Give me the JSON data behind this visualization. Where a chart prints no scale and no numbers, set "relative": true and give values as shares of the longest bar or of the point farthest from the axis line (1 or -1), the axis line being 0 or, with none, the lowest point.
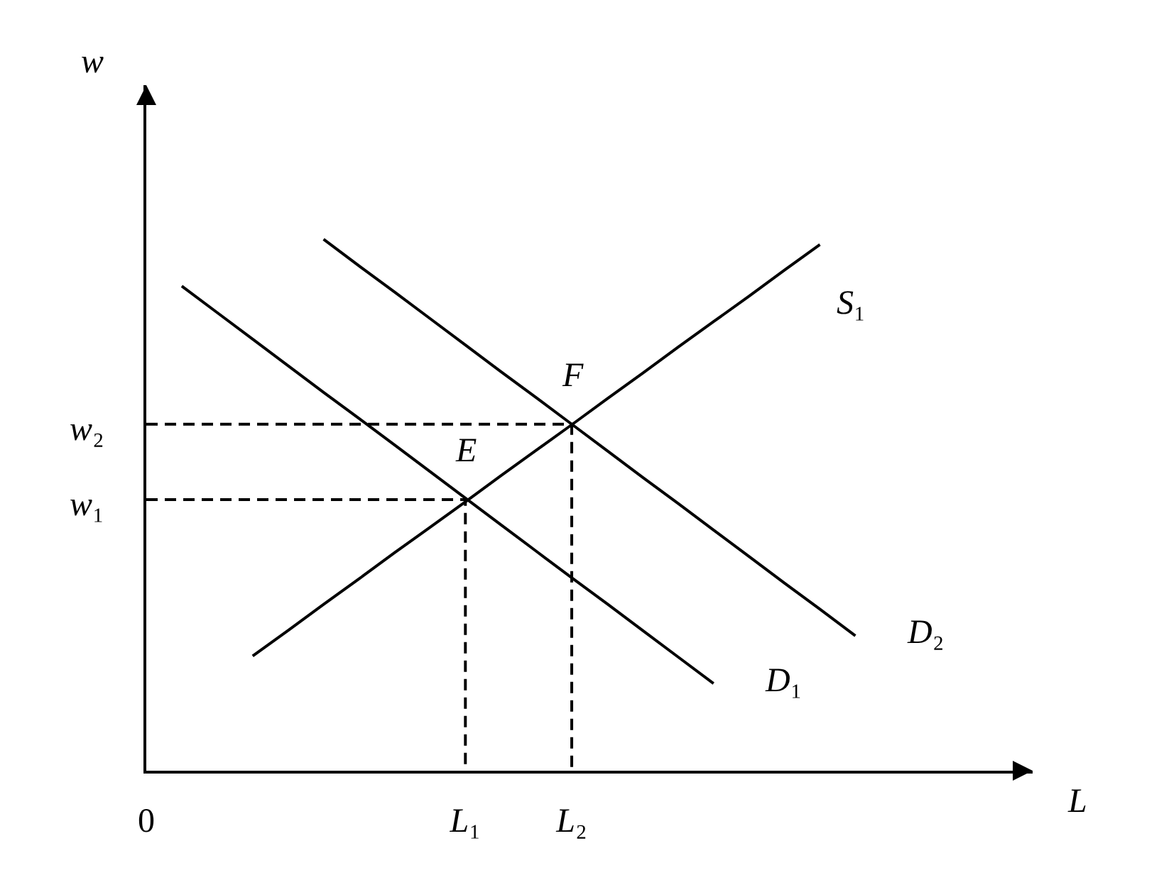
{
  "chart_data": {
    "type": "line",
    "relative": true,
    "xlabel": "L",
    "ylabel": "w",
    "line_style": "solid",
    "categories": [
      "0",
      null,
      null,
      null,
      null,
      null,
      null,
      null,
      null,
      "L₁",
      null,
      null,
      "L₂",
      null,
      null,
      null,
      null,
      null,
      null,
      null,
      null,
      null,
      null,
      null,
      null,
      null
    ],
    "series": [
      {
        "name": "S₁",
        "color": "#000000",
        "values": [
          null,
          null,
          null,
          0.216,
          0.264,
          0.313,
          0.361,
          0.41,
          0.458,
          0.506,
          0.555,
          0.603,
          0.651,
          0.7,
          0.748,
          0.797,
          0.845,
          0.893,
          0.942,
          0.99,
          null,
          null,
          null,
          null,
          null,
          null
        ]
      },
      {
        "name": "D₁",
        "color": "#000000",
        "values": [
          null,
          0.912,
          0.862,
          0.812,
          0.762,
          0.712,
          0.663,
          0.613,
          0.563,
          0.513,
          0.463,
          0.413,
          0.363,
          0.314,
          0.264,
          0.214,
          0.164,
          null,
          null,
          null,
          null,
          null,
          null,
          null,
          null,
          null
        ]
      },
      {
        "name": "D₂",
        "color": "#000000",
        "values": [
          null,
          null,
          null,
          null,
          null,
          1.0,
          0.95,
          0.901,
          0.851,
          0.801,
          0.751,
          0.702,
          0.652,
          0.602,
          0.552,
          0.503,
          0.453,
          0.403,
          0.353,
          0.304,
          0.254,
          null,
          null,
          null,
          null,
          null
        ]
      },
      {
        "color": "#000000",
        "line_style": "dashed",
        "x": [
          "0",
          "L₁",
          "L₁"
        ],
        "values": [
          0.51,
          0.51,
          0
        ]
      },
      {
        "color": "#000000",
        "line_style": "dashed",
        "x": [
          "0",
          "L₂",
          "L₂"
        ],
        "values": [
          0.652,
          0.652,
          0
        ]
      }
    ],
    "annotations": [
      {
        "text": "E",
        "x": "L₁",
        "y": 0.51
      },
      {
        "text": "F",
        "x": "L₂",
        "y": 0.652
      },
      {
        "text": "w₁",
        "x": "0",
        "y": 0.51
      },
      {
        "text": "w₂",
        "x": "0",
        "y": 0.652
      }
    ]
  }
}
